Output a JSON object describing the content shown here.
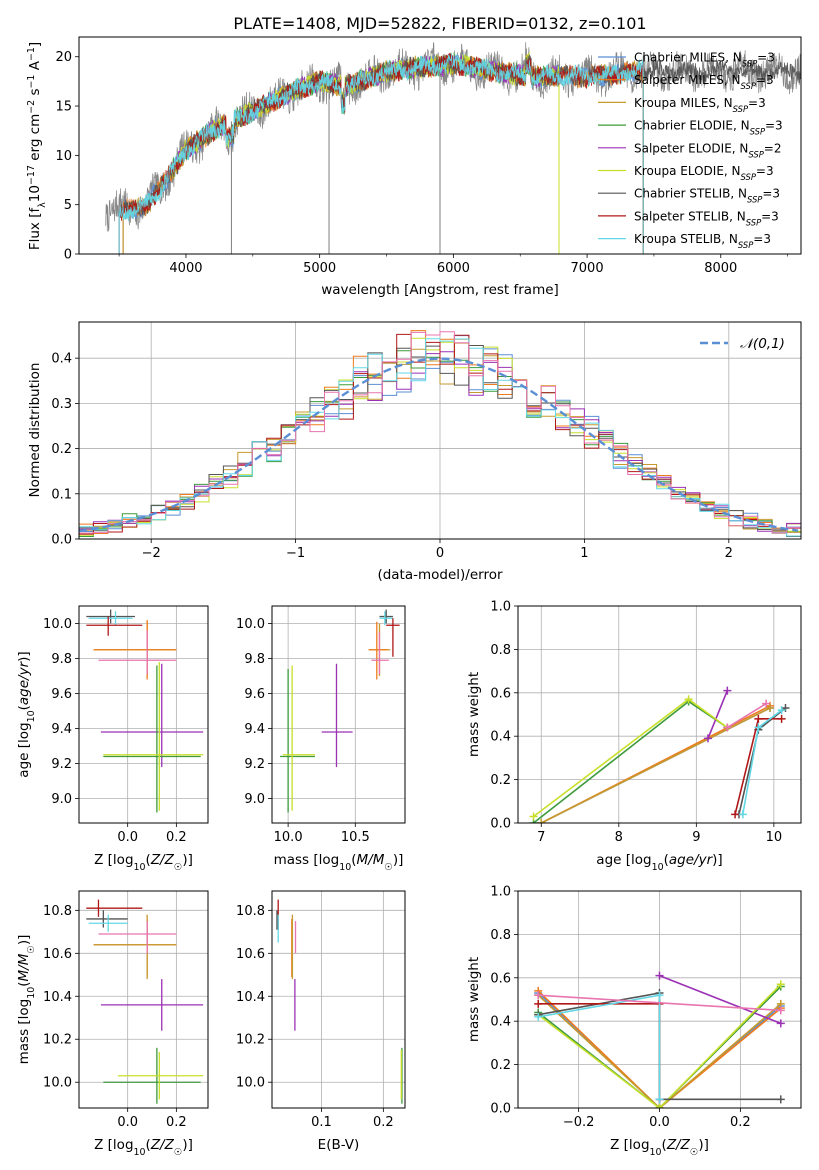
{
  "chart_data": [
    {
      "type": "line",
      "title": "PLATE=1408, MJD=52822, FIBERID=0132, z=0.101",
      "xlabel": "wavelength [Angstrom, rest frame]",
      "ylabel": "Flux [f_λ10⁻¹⁷ erg cm⁻² s⁻¹ A⁻¹]",
      "xlim": [
        3200,
        8600
      ],
      "ylim": [
        0,
        22
      ],
      "xticks": [
        "4000",
        "5000",
        "6000",
        "7000",
        "8000"
      ],
      "yticks": [
        "0",
        "5",
        "10",
        "15",
        "20"
      ],
      "grid": false,
      "legend_position": "top-right",
      "series": [
        {
          "name": "Chabrier MILES, N_SSP=3",
          "color": "#5b8fd4",
          "wmin": 3530,
          "wmax": 7420
        },
        {
          "name": "Salpeter MILES, N_SSP=3",
          "color": "#f07b1d",
          "wmin": 3530,
          "wmax": 7420
        },
        {
          "name": "Kroupa MILES, N_SSP=3",
          "color": "#c59a2f",
          "wmin": 3530,
          "wmax": 7420
        },
        {
          "name": "Chabrier ELODIE, N_SSP=3",
          "color": "#3c9a3c",
          "wmin": 3900,
          "wmax": 6790
        },
        {
          "name": "Salpeter ELODIE, N_SSP=2",
          "color": "#9b30b5",
          "wmin": 3900,
          "wmax": 6790
        },
        {
          "name": "Kroupa ELODIE, N_SSP=3",
          "color": "#c8df2a",
          "wmin": 3900,
          "wmax": 6790
        },
        {
          "name": "Chabrier STELIB, N_SSP=3",
          "color": "#555555",
          "wmin": 3500,
          "wmax": 8600
        },
        {
          "name": "Salpeter STELIB, N_SSP=3",
          "color": "#b01818",
          "wmin": 3500,
          "wmax": 7420
        },
        {
          "name": "Kroupa STELIB, N_SSP=3",
          "color": "#62d8e6",
          "wmin": 3500,
          "wmax": 7420
        }
      ],
      "data_spectrum": {
        "color": "#7f7f7f",
        "wmin": 3400,
        "wmax": 8600
      },
      "continuum_level": [
        [
          3400,
          4.5
        ],
        [
          3600,
          4.5
        ],
        [
          3700,
          5.0
        ],
        [
          3800,
          6.5
        ],
        [
          3900,
          8.5
        ],
        [
          4000,
          10.5
        ],
        [
          4200,
          12.5
        ],
        [
          4500,
          14.5
        ],
        [
          4800,
          16.5
        ],
        [
          5000,
          17.5
        ],
        [
          5200,
          17.0
        ],
        [
          5500,
          18.5
        ],
        [
          5800,
          19.0
        ],
        [
          6000,
          19.3
        ],
        [
          6300,
          18.5
        ],
        [
          6600,
          18.0
        ],
        [
          7000,
          18.0
        ],
        [
          7400,
          18.5
        ],
        [
          8000,
          18.5
        ],
        [
          8600,
          18.5
        ]
      ]
    },
    {
      "type": "histogram",
      "xlabel": "(data-model)/error",
      "ylabel": "Normed distribution",
      "xlim": [
        -2.5,
        2.5
      ],
      "ylim": [
        0,
        0.48
      ],
      "xticks": [
        "−2",
        "−1",
        "0",
        "1",
        "2"
      ],
      "yticks": [
        "0.0",
        "0.1",
        "0.2",
        "0.3",
        "0.4"
      ],
      "grid": true,
      "bin_width": 0.1,
      "legend": [
        {
          "label": "𝒩(0,1)",
          "style": "dashed",
          "color": "#5b8fd4"
        }
      ],
      "legend_position": "top-right",
      "reference_curve": "normal(0,1)"
    },
    {
      "type": "scatter",
      "xlabel": "Z [log10(Z/Z☉)]",
      "ylabel": "age  [log10(age/yr)]",
      "xlim": [
        -0.2,
        0.33
      ],
      "ylim": [
        8.86,
        10.1
      ],
      "xticks": [
        "0.0",
        "0.2"
      ],
      "yticks": [
        "9.0",
        "9.2",
        "9.4",
        "9.6",
        "9.8",
        "10.0"
      ],
      "grid": true,
      "error_crosses": [
        {
          "x": -0.07,
          "y": 10.04,
          "xlo": -0.17,
          "xhi": 0.03,
          "ylo": 10.0,
          "yhi": 10.08,
          "color": "#555555"
        },
        {
          "x": -0.05,
          "y": 10.03,
          "xlo": -0.16,
          "xhi": 0.02,
          "ylo": 9.99,
          "yhi": 10.07,
          "color": "#62d8e6"
        },
        {
          "x": -0.08,
          "y": 9.99,
          "xlo": -0.17,
          "xhi": 0.06,
          "ylo": 9.93,
          "yhi": 10.04,
          "color": "#b01818"
        },
        {
          "x": 0.08,
          "y": 9.85,
          "xlo": -0.14,
          "xhi": 0.2,
          "ylo": 9.7,
          "yhi": 10.01,
          "color": "#c59a2f"
        },
        {
          "x": 0.08,
          "y": 9.85,
          "xlo": -0.14,
          "xhi": 0.2,
          "ylo": 9.68,
          "yhi": 10.02,
          "color": "#f07b1d"
        },
        {
          "x": 0.08,
          "y": 9.79,
          "xlo": -0.12,
          "xhi": 0.2,
          "ylo": 9.71,
          "yhi": 9.96,
          "color": "#e874b0"
        },
        {
          "x": 0.14,
          "y": 9.38,
          "xlo": -0.11,
          "xhi": 0.31,
          "ylo": 9.18,
          "yhi": 9.77,
          "color": "#9b30b5"
        },
        {
          "x": 0.12,
          "y": 9.24,
          "xlo": -0.1,
          "xhi": 0.3,
          "ylo": 8.92,
          "yhi": 9.76,
          "color": "#3c9a3c"
        },
        {
          "x": 0.13,
          "y": 9.25,
          "xlo": -0.1,
          "xhi": 0.31,
          "ylo": 8.93,
          "yhi": 9.78,
          "color": "#c8df2a"
        }
      ]
    },
    {
      "type": "scatter",
      "xlabel": "mass [log10(M/M☉)]",
      "xlim": [
        9.88,
        10.87
      ],
      "ylim": [
        8.86,
        10.1
      ],
      "xticks": [
        "10.0",
        "10.5"
      ],
      "yticks": [
        "9.0",
        "9.2",
        "9.4",
        "9.6",
        "9.8",
        "10.0"
      ],
      "grid": true,
      "error_crosses": [
        {
          "x": 10.73,
          "y": 10.04,
          "xlo": 10.68,
          "xhi": 10.78,
          "ylo": 10.0,
          "yhi": 10.08,
          "color": "#555555"
        },
        {
          "x": 10.72,
          "y": 10.03,
          "xlo": 10.68,
          "xhi": 10.78,
          "ylo": 9.99,
          "yhi": 10.07,
          "color": "#62d8e6"
        },
        {
          "x": 10.78,
          "y": 9.99,
          "xlo": 10.73,
          "xhi": 10.83,
          "ylo": 9.81,
          "yhi": 10.03,
          "color": "#b01818"
        },
        {
          "x": 10.68,
          "y": 9.85,
          "xlo": 10.6,
          "xhi": 10.76,
          "ylo": 9.7,
          "yhi": 10.0,
          "color": "#c59a2f"
        },
        {
          "x": 10.66,
          "y": 9.85,
          "xlo": 10.6,
          "xhi": 10.74,
          "ylo": 9.68,
          "yhi": 10.01,
          "color": "#f07b1d"
        },
        {
          "x": 10.68,
          "y": 9.79,
          "xlo": 10.62,
          "xhi": 10.75,
          "ylo": 9.71,
          "yhi": 9.95,
          "color": "#e874b0"
        },
        {
          "x": 10.36,
          "y": 9.38,
          "xlo": 10.25,
          "xhi": 10.48,
          "ylo": 9.18,
          "yhi": 9.77,
          "color": "#9b30b5"
        },
        {
          "x": 10.0,
          "y": 9.24,
          "xlo": 9.94,
          "xhi": 10.2,
          "ylo": 8.92,
          "yhi": 9.74,
          "color": "#3c9a3c"
        },
        {
          "x": 10.03,
          "y": 9.25,
          "xlo": 9.96,
          "xhi": 10.2,
          "ylo": 8.93,
          "yhi": 9.76,
          "color": "#c8df2a"
        }
      ]
    },
    {
      "type": "line",
      "xlabel": "age  [log10(age/yr)]",
      "ylabel": "mass weight",
      "xlim": [
        6.7,
        10.35
      ],
      "ylim": [
        0,
        1
      ],
      "xticks": [
        "7",
        "8",
        "9",
        "10"
      ],
      "yticks": [
        "0.0",
        "0.2",
        "0.4",
        "0.6",
        "0.8",
        "1.0"
      ],
      "grid": true,
      "series": [
        {
          "name": "Chabrier MILES",
          "color": "#5b8fd4",
          "x": [
            7.0,
            9.95
          ],
          "y": [
            0.0,
            0.53
          ]
        },
        {
          "name": "Salpeter MILES",
          "color": "#f07b1d",
          "x": [
            7.0,
            9.95
          ],
          "y": [
            0.0,
            0.54
          ]
        },
        {
          "name": "Kroupa MILES",
          "color": "#c59a2f",
          "x": [
            7.0,
            9.95
          ],
          "y": [
            0.0,
            0.53
          ]
        },
        {
          "name": "Chabrier ELODIE",
          "color": "#3c9a3c",
          "x": [
            6.9,
            8.9,
            9.4
          ],
          "y": [
            0.0,
            0.56,
            0.44
          ]
        },
        {
          "name": "Salpeter ELODIE",
          "color": "#9b30b5",
          "x": [
            9.15,
            9.4
          ],
          "y": [
            0.39,
            0.61
          ]
        },
        {
          "name": "Kroupa ELODIE",
          "color": "#c8df2a",
          "x": [
            6.9,
            8.9,
            9.4
          ],
          "y": [
            0.03,
            0.57,
            0.44
          ]
        },
        {
          "name": "Chabrier STELIB",
          "color": "#555555",
          "x": [
            9.55,
            9.8,
            10.15
          ],
          "y": [
            0.04,
            0.43,
            0.53
          ]
        },
        {
          "name": "Salpeter STELIB",
          "color": "#b01818",
          "x": [
            9.5,
            9.8,
            10.1
          ],
          "y": [
            0.04,
            0.48,
            0.48
          ]
        },
        {
          "name": "Kroupa STELIB",
          "color": "#62d8e6",
          "x": [
            9.6,
            9.8,
            10.1
          ],
          "y": [
            0.04,
            0.44,
            0.52
          ]
        },
        {
          "name": "Kroupa",
          "color": "#e874b0",
          "x": [
            9.4,
            9.9
          ],
          "y": [
            0.44,
            0.55
          ]
        }
      ]
    },
    {
      "type": "scatter",
      "xlabel": "Z [log10(Z/Z☉)]",
      "ylabel": "mass [log10(M/M☉)]",
      "xlim": [
        -0.2,
        0.33
      ],
      "ylim": [
        9.88,
        10.89
      ],
      "xticks": [
        "0.0",
        "0.2"
      ],
      "yticks": [
        "10.0",
        "10.2",
        "10.4",
        "10.6",
        "10.8"
      ],
      "grid": true,
      "error_crosses": [
        {
          "x": -0.12,
          "y": 10.81,
          "xlo": -0.17,
          "xhi": 0.06,
          "ylo": 10.77,
          "yhi": 10.85,
          "color": "#b01818"
        },
        {
          "x": -0.1,
          "y": 10.76,
          "xlo": -0.17,
          "xhi": 0.0,
          "ylo": 10.72,
          "yhi": 10.8,
          "color": "#555555"
        },
        {
          "x": -0.08,
          "y": 10.74,
          "xlo": -0.16,
          "xhi": 0.0,
          "ylo": 10.7,
          "yhi": 10.78,
          "color": "#62d8e6"
        },
        {
          "x": 0.08,
          "y": 10.64,
          "xlo": -0.14,
          "xhi": 0.2,
          "ylo": 10.49,
          "yhi": 10.76,
          "color": "#f07b1d"
        },
        {
          "x": 0.08,
          "y": 10.64,
          "xlo": -0.14,
          "xhi": 0.2,
          "ylo": 10.48,
          "yhi": 10.78,
          "color": "#c59a2f"
        },
        {
          "x": 0.08,
          "y": 10.69,
          "xlo": -0.12,
          "xhi": 0.2,
          "ylo": 10.6,
          "yhi": 10.75,
          "color": "#e874b0"
        },
        {
          "x": 0.14,
          "y": 10.36,
          "xlo": -0.11,
          "xhi": 0.31,
          "ylo": 10.24,
          "yhi": 10.48,
          "color": "#9b30b5"
        },
        {
          "x": 0.12,
          "y": 10.0,
          "xlo": -0.1,
          "xhi": 0.3,
          "ylo": 9.9,
          "yhi": 10.16,
          "color": "#3c9a3c"
        },
        {
          "x": 0.13,
          "y": 10.03,
          "xlo": -0.04,
          "xhi": 0.31,
          "ylo": 9.92,
          "yhi": 10.14,
          "color": "#c8df2a"
        }
      ]
    },
    {
      "type": "scatter",
      "xlabel": "E(B-V)",
      "xlim": [
        0.02,
        0.235
      ],
      "ylim": [
        9.88,
        10.89
      ],
      "xticks": [
        "0.1",
        "0.2"
      ],
      "yticks": [
        "10.0",
        "10.2",
        "10.4",
        "10.6",
        "10.8"
      ],
      "grid": true,
      "error_crosses": [
        {
          "x": 0.03,
          "y": 10.8,
          "xlo": 0.03,
          "xhi": 0.03,
          "ylo": 10.71,
          "yhi": 10.85,
          "color": "#b01818"
        },
        {
          "x": 0.028,
          "y": 10.76,
          "xlo": 0.028,
          "xhi": 0.028,
          "ylo": 10.71,
          "yhi": 10.8,
          "color": "#555555"
        },
        {
          "x": 0.03,
          "y": 10.74,
          "xlo": 0.03,
          "xhi": 0.03,
          "ylo": 10.65,
          "yhi": 10.78,
          "color": "#62d8e6"
        },
        {
          "x": 0.052,
          "y": 10.64,
          "xlo": 0.052,
          "xhi": 0.052,
          "ylo": 10.49,
          "yhi": 10.76,
          "color": "#f07b1d"
        },
        {
          "x": 0.053,
          "y": 10.64,
          "xlo": 0.053,
          "xhi": 0.053,
          "ylo": 10.48,
          "yhi": 10.78,
          "color": "#c59a2f"
        },
        {
          "x": 0.058,
          "y": 10.69,
          "xlo": 0.058,
          "xhi": 0.058,
          "ylo": 10.6,
          "yhi": 10.75,
          "color": "#e874b0"
        },
        {
          "x": 0.057,
          "y": 10.36,
          "xlo": 0.057,
          "xhi": 0.057,
          "ylo": 10.24,
          "yhi": 10.48,
          "color": "#9b30b5"
        },
        {
          "x": 0.23,
          "y": 10.0,
          "xlo": 0.23,
          "xhi": 0.23,
          "ylo": 9.9,
          "yhi": 10.16,
          "color": "#3c9a3c"
        },
        {
          "x": 0.229,
          "y": 10.03,
          "xlo": 0.229,
          "xhi": 0.229,
          "ylo": 9.92,
          "yhi": 10.15,
          "color": "#c8df2a"
        }
      ]
    },
    {
      "type": "line",
      "xlabel": "Z [log10(Z/Z☉)]",
      "ylabel": "mass weight",
      "xlim": [
        -0.35,
        0.35
      ],
      "ylim": [
        0,
        1
      ],
      "xticks": [
        "−0.2",
        "0.0",
        "0.2"
      ],
      "yticks": [
        "0.0",
        "0.2",
        "0.4",
        "0.6",
        "0.8",
        "1.0"
      ],
      "grid": true,
      "series": [
        {
          "name": "Chabrier MILES",
          "color": "#5b8fd4",
          "x": [
            -0.3,
            0.0,
            0.3
          ],
          "y": [
            0.53,
            0.0,
            0.47
          ]
        },
        {
          "name": "Salpeter MILES",
          "color": "#f07b1d",
          "x": [
            -0.3,
            0.0,
            0.3
          ],
          "y": [
            0.54,
            0.0,
            0.46
          ]
        },
        {
          "name": "Kroupa MILES",
          "color": "#c59a2f",
          "x": [
            -0.3,
            0.0,
            0.3
          ],
          "y": [
            0.52,
            0.0,
            0.48
          ]
        },
        {
          "name": "Chabrier ELODIE",
          "color": "#3c9a3c",
          "x": [
            -0.3,
            0.0,
            0.3
          ],
          "y": [
            0.44,
            0.0,
            0.56
          ]
        },
        {
          "name": "Salpeter ELODIE",
          "color": "#9b30b5",
          "x": [
            0.0,
            0.3
          ],
          "y": [
            0.61,
            0.39
          ]
        },
        {
          "name": "Kroupa ELODIE",
          "color": "#c8df2a",
          "x": [
            -0.3,
            0.0,
            0.3
          ],
          "y": [
            0.43,
            0.0,
            0.57
          ]
        },
        {
          "name": "Chabrier STELIB",
          "color": "#555555",
          "x": [
            -0.3,
            0.0,
            0.0,
            0.3
          ],
          "y": [
            0.43,
            0.53,
            0.04,
            0.04
          ]
        },
        {
          "name": "Salpeter STELIB",
          "color": "#b01818",
          "x": [
            -0.3,
            0.0,
            0.0
          ],
          "y": [
            0.48,
            0.48,
            0.04
          ]
        },
        {
          "name": "Kroupa STELIB",
          "color": "#62d8e6",
          "x": [
            -0.3,
            0.0,
            0.0
          ],
          "y": [
            0.42,
            0.52,
            0.04
          ]
        },
        {
          "name": "Kroupa",
          "color": "#e874b0",
          "x": [
            -0.3,
            0.3
          ],
          "y": [
            0.52,
            0.45
          ]
        }
      ]
    }
  ]
}
